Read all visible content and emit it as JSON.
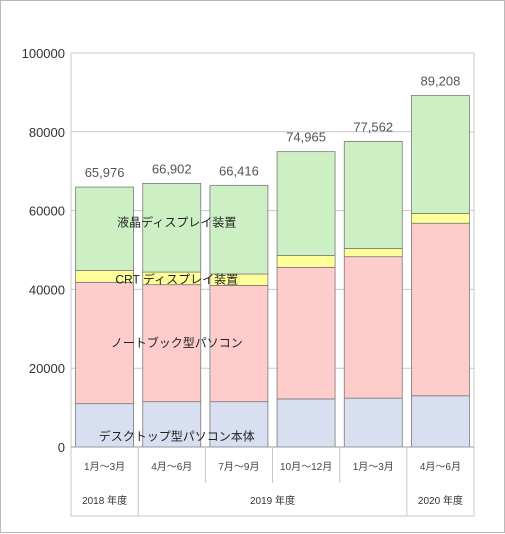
{
  "chart_data": {
    "type": "bar",
    "stacked": true,
    "title": "",
    "xlabel": "",
    "ylabel": "",
    "ylim": [
      0,
      100000
    ],
    "yticks": [
      "0",
      "20000",
      "40000",
      "60000",
      "80000",
      "100000"
    ],
    "grid": true,
    "categories": [
      "1月～3月",
      "4月～6月",
      "7月～9月",
      "10月～12月",
      "1月～3月",
      "4月～6月"
    ],
    "category_groups": [
      {
        "label": "2018 年度",
        "span": 1
      },
      {
        "label": "2019 年度",
        "span": 4
      },
      {
        "label": "2020 年度",
        "span": 1
      }
    ],
    "totals": [
      "65,976",
      "66,902",
      "66,416",
      "74,965",
      "77,562",
      "89,208"
    ],
    "total_values": [
      65976,
      66902,
      66416,
      74965,
      77562,
      89208
    ],
    "highlight_index": 5,
    "highlight_color": "#ff2a2a",
    "series": [
      {
        "name": "デスクトップ型パソコン本体",
        "color": "#d8dff0",
        "values": [
          11000,
          11500,
          11500,
          12200,
          12400,
          13000
        ]
      },
      {
        "name": "ノートブック型パソコン",
        "color": "#ffcccc",
        "values": [
          30800,
          29700,
          29500,
          33400,
          35900,
          43800
        ]
      },
      {
        "name": "CRT ディスプレイ装置",
        "color": "#ffff99",
        "values": [
          3000,
          3200,
          2900,
          3000,
          2100,
          2500
        ]
      },
      {
        "name": "液晶ディスプレイ装置",
        "color": "#ccf0c4",
        "values": [
          21176,
          22502,
          22516,
          26365,
          27162,
          29908
        ]
      }
    ]
  }
}
